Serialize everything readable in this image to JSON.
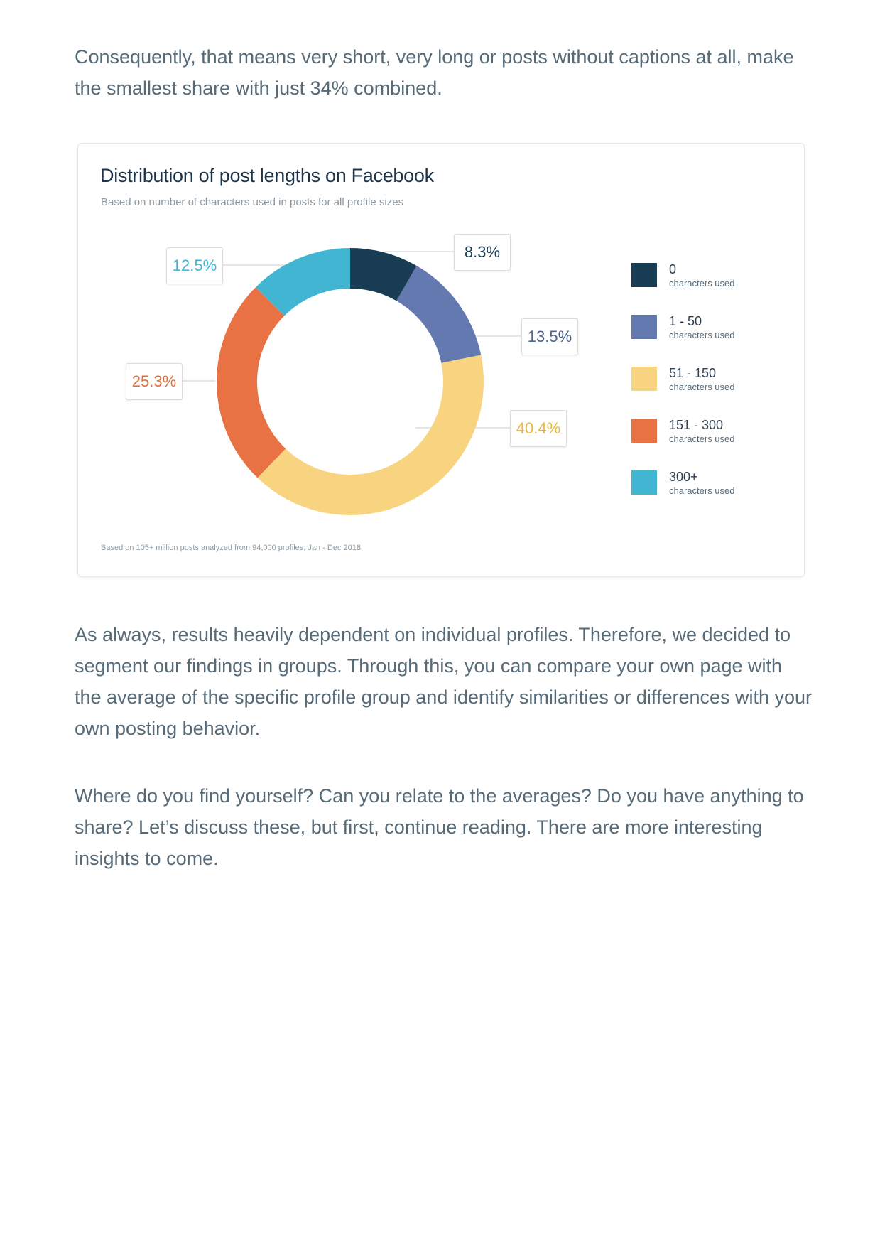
{
  "paragraphs": {
    "intro": "Consequently, that means very short, very long or posts without captions at all, make the smallest share with just 34% combined.",
    "segment": "As always, results heavily dependent on individual profiles. Therefore, we decided to segment our findings in groups. Through this, you can compare your own page with the average of the specific profile group and identify similarities or differences with your own posting behavior.",
    "question": "Where do you find yourself? Can you relate to the averages? Do you have anything to share? Let’s discuss these, but first, continue reading. There are more interesting insights to come."
  },
  "chart_data": {
    "type": "pie",
    "variant": "donut",
    "title": "Distribution of post lengths on Facebook",
    "subtitle": "Based on number of characters used in posts for all profile sizes",
    "footnote": "Based on 105+ million posts analyzed from 94,000 profiles, Jan - Dec 2018",
    "legend_position": "right",
    "unit_label": "characters used",
    "slices": [
      {
        "name": "0",
        "value": 8.3,
        "label": "8.3%",
        "color": "#1a3d56"
      },
      {
        "name": "1 - 50",
        "value": 13.5,
        "label": "13.5%",
        "color": "#6479af"
      },
      {
        "name": "51 - 150",
        "value": 40.4,
        "label": "40.4%",
        "color": "#f8d481"
      },
      {
        "name": "151 - 300",
        "value": 25.3,
        "label": "25.3%",
        "color": "#e87243"
      },
      {
        "name": "300+",
        "value": 12.5,
        "label": "12.5%",
        "color": "#41b5d2"
      }
    ],
    "label_colors": [
      "#1a3d56",
      "#4d6490",
      "#eab93a",
      "#e07040",
      "#41b5d2"
    ]
  }
}
